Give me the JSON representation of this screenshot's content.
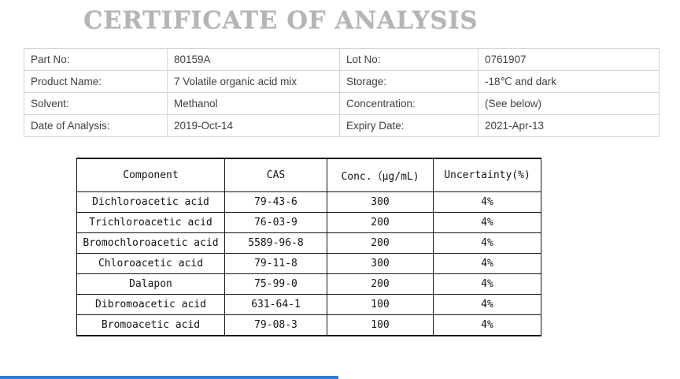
{
  "title": "CERTIFICATE OF ANALYSIS",
  "info_table": {
    "rows": [
      {
        "label1": "Part No:",
        "value1": "80159A",
        "label2": "Lot No:",
        "value2": "0761907"
      },
      {
        "label1": "Product Name:",
        "value1": "7 Volatile organic acid mix",
        "label2": "Storage:",
        "value2": "-18℃ and dark"
      },
      {
        "label1": "Solvent:",
        "value1": "Methanol",
        "label2": "Concentration:",
        "value2": "(See below)"
      },
      {
        "label1": "Date of Analysis:",
        "value1": "2019-Oct-14",
        "label2": "Expiry Date:",
        "value2": "2021-Apr-13"
      }
    ]
  },
  "component_table": {
    "headers": [
      "Component",
      "CAS",
      "Conc.（μg/mL)",
      "Uncertainty(%)"
    ],
    "rows": [
      [
        "Dichloroacetic acid",
        "79-43-6",
        "300",
        "4%"
      ],
      [
        "Trichloroacetic acid",
        "76-03-9",
        "200",
        "4%"
      ],
      [
        "Bromochloroacetic acid",
        "5589-96-8",
        "200",
        "4%"
      ],
      [
        "Chloroacetic acid",
        "79-11-8",
        "300",
        "4%"
      ],
      [
        "Dalapon",
        "75-99-0",
        "200",
        "4%"
      ],
      [
        "Dibromoacetic acid",
        "631-64-1",
        "100",
        "4%"
      ],
      [
        "Bromoacetic acid",
        "79-08-3",
        "100",
        "4%"
      ]
    ]
  },
  "footer": {
    "accent_color": "#2e7cd6"
  }
}
